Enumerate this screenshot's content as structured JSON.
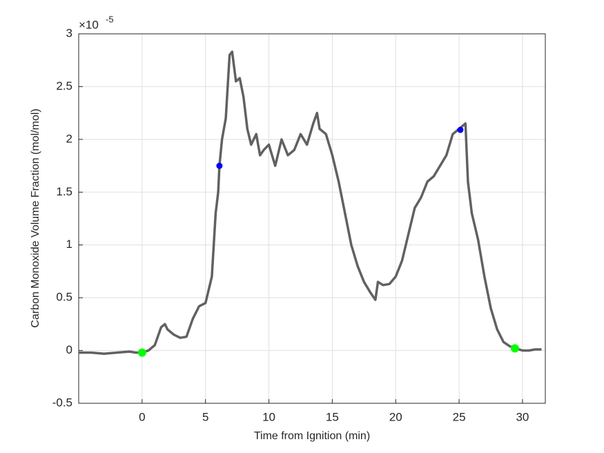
{
  "chart_data": {
    "type": "line",
    "xlabel": "Time from Ignition (min)",
    "ylabel": "Carbon Monoxide Volume Fraction (mol/mol)",
    "y_multiplier": "×10",
    "y_exponent": "-5",
    "xlim": [
      -5,
      31.8
    ],
    "ylim": [
      -0.5,
      3
    ],
    "xticks": [
      0,
      5,
      10,
      15,
      20,
      25,
      30
    ],
    "yticks": [
      -0.5,
      0,
      0.5,
      1,
      1.5,
      2,
      2.5,
      3
    ],
    "grid": true,
    "series": [
      {
        "color": "#616161",
        "marker": "line",
        "x": [
          -5,
          -4,
          -3,
          -2,
          -1,
          -0.5,
          0,
          0.5,
          1,
          1.5,
          1.8,
          2,
          2.5,
          3,
          3.5,
          4,
          4.5,
          5,
          5.5,
          5.8,
          6,
          6.1,
          6.3,
          6.6,
          6.9,
          7.1,
          7.4,
          7.7,
          8,
          8.3,
          8.6,
          9,
          9.3,
          9.6,
          10,
          10.5,
          11,
          11.5,
          12,
          12.5,
          13,
          13.5,
          13.8,
          14,
          14.5,
          15,
          15.5,
          16,
          16.5,
          17,
          17.5,
          18,
          18.4,
          18.6,
          19,
          19.5,
          20,
          20.5,
          21,
          21.5,
          22,
          22.5,
          23,
          23.5,
          24,
          24.5,
          25,
          25.5,
          25.7,
          26,
          26.5,
          27,
          27.5,
          28,
          28.5,
          29,
          29.5,
          30,
          30.5,
          31,
          31.5
        ],
        "values": [
          -0.02,
          -0.02,
          -0.03,
          -0.02,
          -0.01,
          -0.02,
          -0.02,
          0.0,
          0.05,
          0.22,
          0.25,
          0.2,
          0.15,
          0.12,
          0.13,
          0.3,
          0.42,
          0.45,
          0.7,
          1.3,
          1.5,
          1.75,
          2.0,
          2.2,
          2.8,
          2.83,
          2.55,
          2.58,
          2.4,
          2.1,
          1.95,
          2.05,
          1.85,
          1.9,
          1.95,
          1.75,
          2.0,
          1.85,
          1.9,
          2.05,
          1.95,
          2.15,
          2.25,
          2.1,
          2.05,
          1.85,
          1.6,
          1.3,
          1.0,
          0.8,
          0.65,
          0.55,
          0.48,
          0.65,
          0.62,
          0.63,
          0.7,
          0.85,
          1.1,
          1.35,
          1.45,
          1.6,
          1.65,
          1.75,
          1.85,
          2.05,
          2.1,
          2.15,
          1.6,
          1.3,
          1.05,
          0.7,
          0.4,
          0.2,
          0.08,
          0.04,
          0.02,
          0.0,
          0.0,
          0.01,
          0.01
        ]
      },
      {
        "color": "#00ff00",
        "marker": "dot",
        "x": [
          0,
          29.4
        ],
        "values": [
          -0.02,
          0.02
        ]
      },
      {
        "color": "#0000ff",
        "marker": "dot",
        "x": [
          6.1,
          25.1
        ],
        "values": [
          1.75,
          2.09
        ]
      }
    ]
  }
}
